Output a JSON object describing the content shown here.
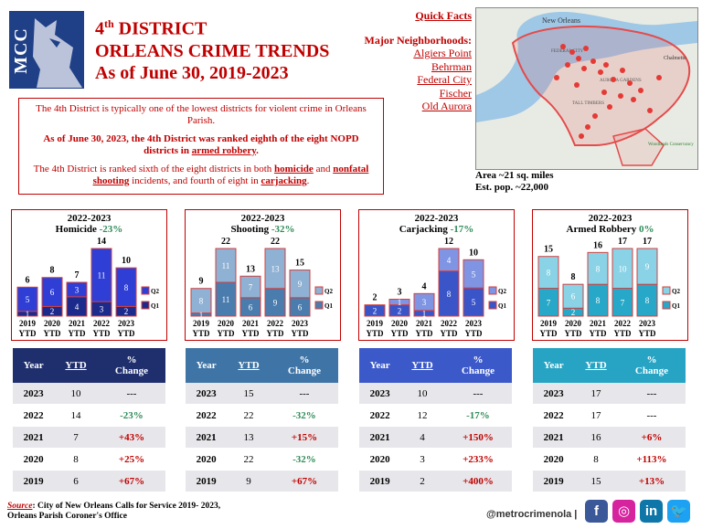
{
  "logo": {
    "text": "MCC"
  },
  "title": {
    "line1_num": "4",
    "line1_sup": "th",
    "line1_rest": " DISTRICT",
    "line2": "ORLEANS CRIME TRENDS",
    "line3": "As of June 30, 2019-2023"
  },
  "quick_facts": {
    "title": "Quick Facts",
    "neighborhoods_label": "Major Neighborhoods:",
    "neighborhoods": [
      "Algiers Point",
      "Behrman",
      "Federal City",
      "Fischer",
      "Old Aurora"
    ],
    "area": "Area ~21 sq. miles",
    "population": "Est. pop. ~22,000"
  },
  "map_labels": {
    "new_orleans": "New Orleans",
    "federal_city": "FEDERAL CITY",
    "chalmette": "Chalmette",
    "tall_timbers": "TALL TIMBERS",
    "aurora": "AURORA GARDENS",
    "woodlands": "Woodlands Conservancy"
  },
  "intro": {
    "p1": "The 4th District is typically one of the lowest districts for violent crime in Orleans Parish.",
    "p2a": "As of June 30, 2023, the 4th District was ranked eighth of the eight NOPD districts in ",
    "p2b": "armed robbery",
    "p2c": ".",
    "p3a": "The 4th District is ranked sixth of the eight districts in both ",
    "p3b": "homicide",
    "p3c": " and ",
    "p3d": "nonfatal shooting",
    "p3e": " incidents, and fourth of eight in ",
    "p3f": "carjacking",
    "p3g": "."
  },
  "chart_data": [
    {
      "type": "bar",
      "stacked": true,
      "title_period": "2022-2023",
      "title": "Homicide",
      "change": "-23%",
      "categories": [
        "2019 YTD",
        "2020 YTD",
        "2021 YTD",
        "2022 YTD",
        "2023 YTD"
      ],
      "series": [
        {
          "name": "Q1",
          "values": [
            1,
            2,
            4,
            3,
            2
          ]
        },
        {
          "name": "Q2",
          "values": [
            5,
            6,
            3,
            11,
            8
          ]
        }
      ],
      "totals": [
        6,
        8,
        7,
        14,
        10
      ],
      "colors": {
        "Q1": "#1c2a8c",
        "Q2": "#2f3fd6",
        "labels": "#ffffff"
      }
    },
    {
      "type": "bar",
      "stacked": true,
      "title_period": "2022-2023",
      "title": "Shooting",
      "change": "-32%",
      "categories": [
        "2019 YTD",
        "2020 YTD",
        "2021 YTD",
        "2022 YTD",
        "2023 YTD"
      ],
      "series": [
        {
          "name": "Q1",
          "values": [
            1,
            11,
            6,
            9,
            6
          ]
        },
        {
          "name": "Q2",
          "values": [
            8,
            11,
            7,
            13,
            9
          ]
        }
      ],
      "totals": [
        9,
        22,
        13,
        22,
        15
      ],
      "colors": {
        "Q1": "#4a7cae",
        "Q2": "#8fb1d3",
        "labels": "#ffffff"
      }
    },
    {
      "type": "bar",
      "stacked": true,
      "title_period": "2022-2023",
      "title": "Carjacking",
      "change": "-17%",
      "categories": [
        "2019 YTD",
        "2020 YTD",
        "2021 YTD",
        "2022 YTD",
        "2023 YTD"
      ],
      "series": [
        {
          "name": "Q1",
          "values": [
            2,
            2,
            1,
            8,
            5
          ]
        },
        {
          "name": "Q2",
          "values": [
            0,
            1,
            3,
            4,
            5
          ]
        }
      ],
      "totals": [
        2,
        3,
        4,
        12,
        10
      ],
      "colors": {
        "Q1": "#3a55c8",
        "Q2": "#7f95e3",
        "labels": "#ffffff"
      }
    },
    {
      "type": "bar",
      "stacked": true,
      "title_period": "2022-2023",
      "title": "Armed Robbery",
      "change": "0%",
      "categories": [
        "2019 YTD",
        "2020 YTD",
        "2021 YTD",
        "2022 YTD",
        "2023 YTD"
      ],
      "series": [
        {
          "name": "Q1",
          "values": [
            7,
            2,
            8,
            7,
            8
          ]
        },
        {
          "name": "Q2",
          "values": [
            8,
            6,
            8,
            10,
            9
          ]
        }
      ],
      "totals": [
        15,
        8,
        16,
        17,
        17
      ],
      "colors": {
        "Q1": "#27a8c8",
        "Q2": "#8ad3e6",
        "labels": "#ffffff"
      }
    }
  ],
  "tables": [
    {
      "header_color": "#1f2f6e",
      "headers": [
        "Year",
        "YTD",
        "% Change"
      ],
      "rows": [
        [
          "2023",
          "10",
          "---"
        ],
        [
          "2022",
          "14",
          "-23%"
        ],
        [
          "2021",
          "7",
          "+43%"
        ],
        [
          "2020",
          "8",
          "+25%"
        ],
        [
          "2019",
          "6",
          "+67%"
        ]
      ]
    },
    {
      "header_color": "#3f74a6",
      "headers": [
        "Year",
        "YTD",
        "% Change"
      ],
      "rows": [
        [
          "2023",
          "15",
          "---"
        ],
        [
          "2022",
          "22",
          "-32%"
        ],
        [
          "2021",
          "13",
          "+15%"
        ],
        [
          "2020",
          "22",
          "-32%"
        ],
        [
          "2019",
          "9",
          "+67%"
        ]
      ]
    },
    {
      "header_color": "#3c59c9",
      "headers": [
        "Year",
        "YTD",
        "% Change"
      ],
      "rows": [
        [
          "2023",
          "10",
          "---"
        ],
        [
          "2022",
          "12",
          "-17%"
        ],
        [
          "2021",
          "4",
          "+150%"
        ],
        [
          "2020",
          "3",
          "+233%"
        ],
        [
          "2019",
          "2",
          "+400%"
        ]
      ]
    },
    {
      "header_color": "#27a4c4",
      "headers": [
        "Year",
        "YTD",
        "% Change"
      ],
      "rows": [
        [
          "2023",
          "17",
          "---"
        ],
        [
          "2022",
          "17",
          "---"
        ],
        [
          "2021",
          "16",
          "+6%"
        ],
        [
          "2020",
          "8",
          "+113%"
        ],
        [
          "2019",
          "15",
          "+13%"
        ]
      ]
    }
  ],
  "footer": {
    "source_label": "Source",
    "source_text": ": City of New Orleans Calls for Service 2019- 2023,",
    "source_line2": "Orleans Parish Coroner's Office",
    "handle": "@metrocrimenola  |"
  },
  "social": [
    {
      "name": "facebook-icon",
      "glyph": "f",
      "color": "#3b5998"
    },
    {
      "name": "instagram-icon",
      "glyph": "◎",
      "color": "#d6249f"
    },
    {
      "name": "linkedin-icon",
      "glyph": "in",
      "color": "#0e76a8"
    },
    {
      "name": "twitter-icon",
      "glyph": "🐦",
      "color": "#1da1f2"
    }
  ]
}
